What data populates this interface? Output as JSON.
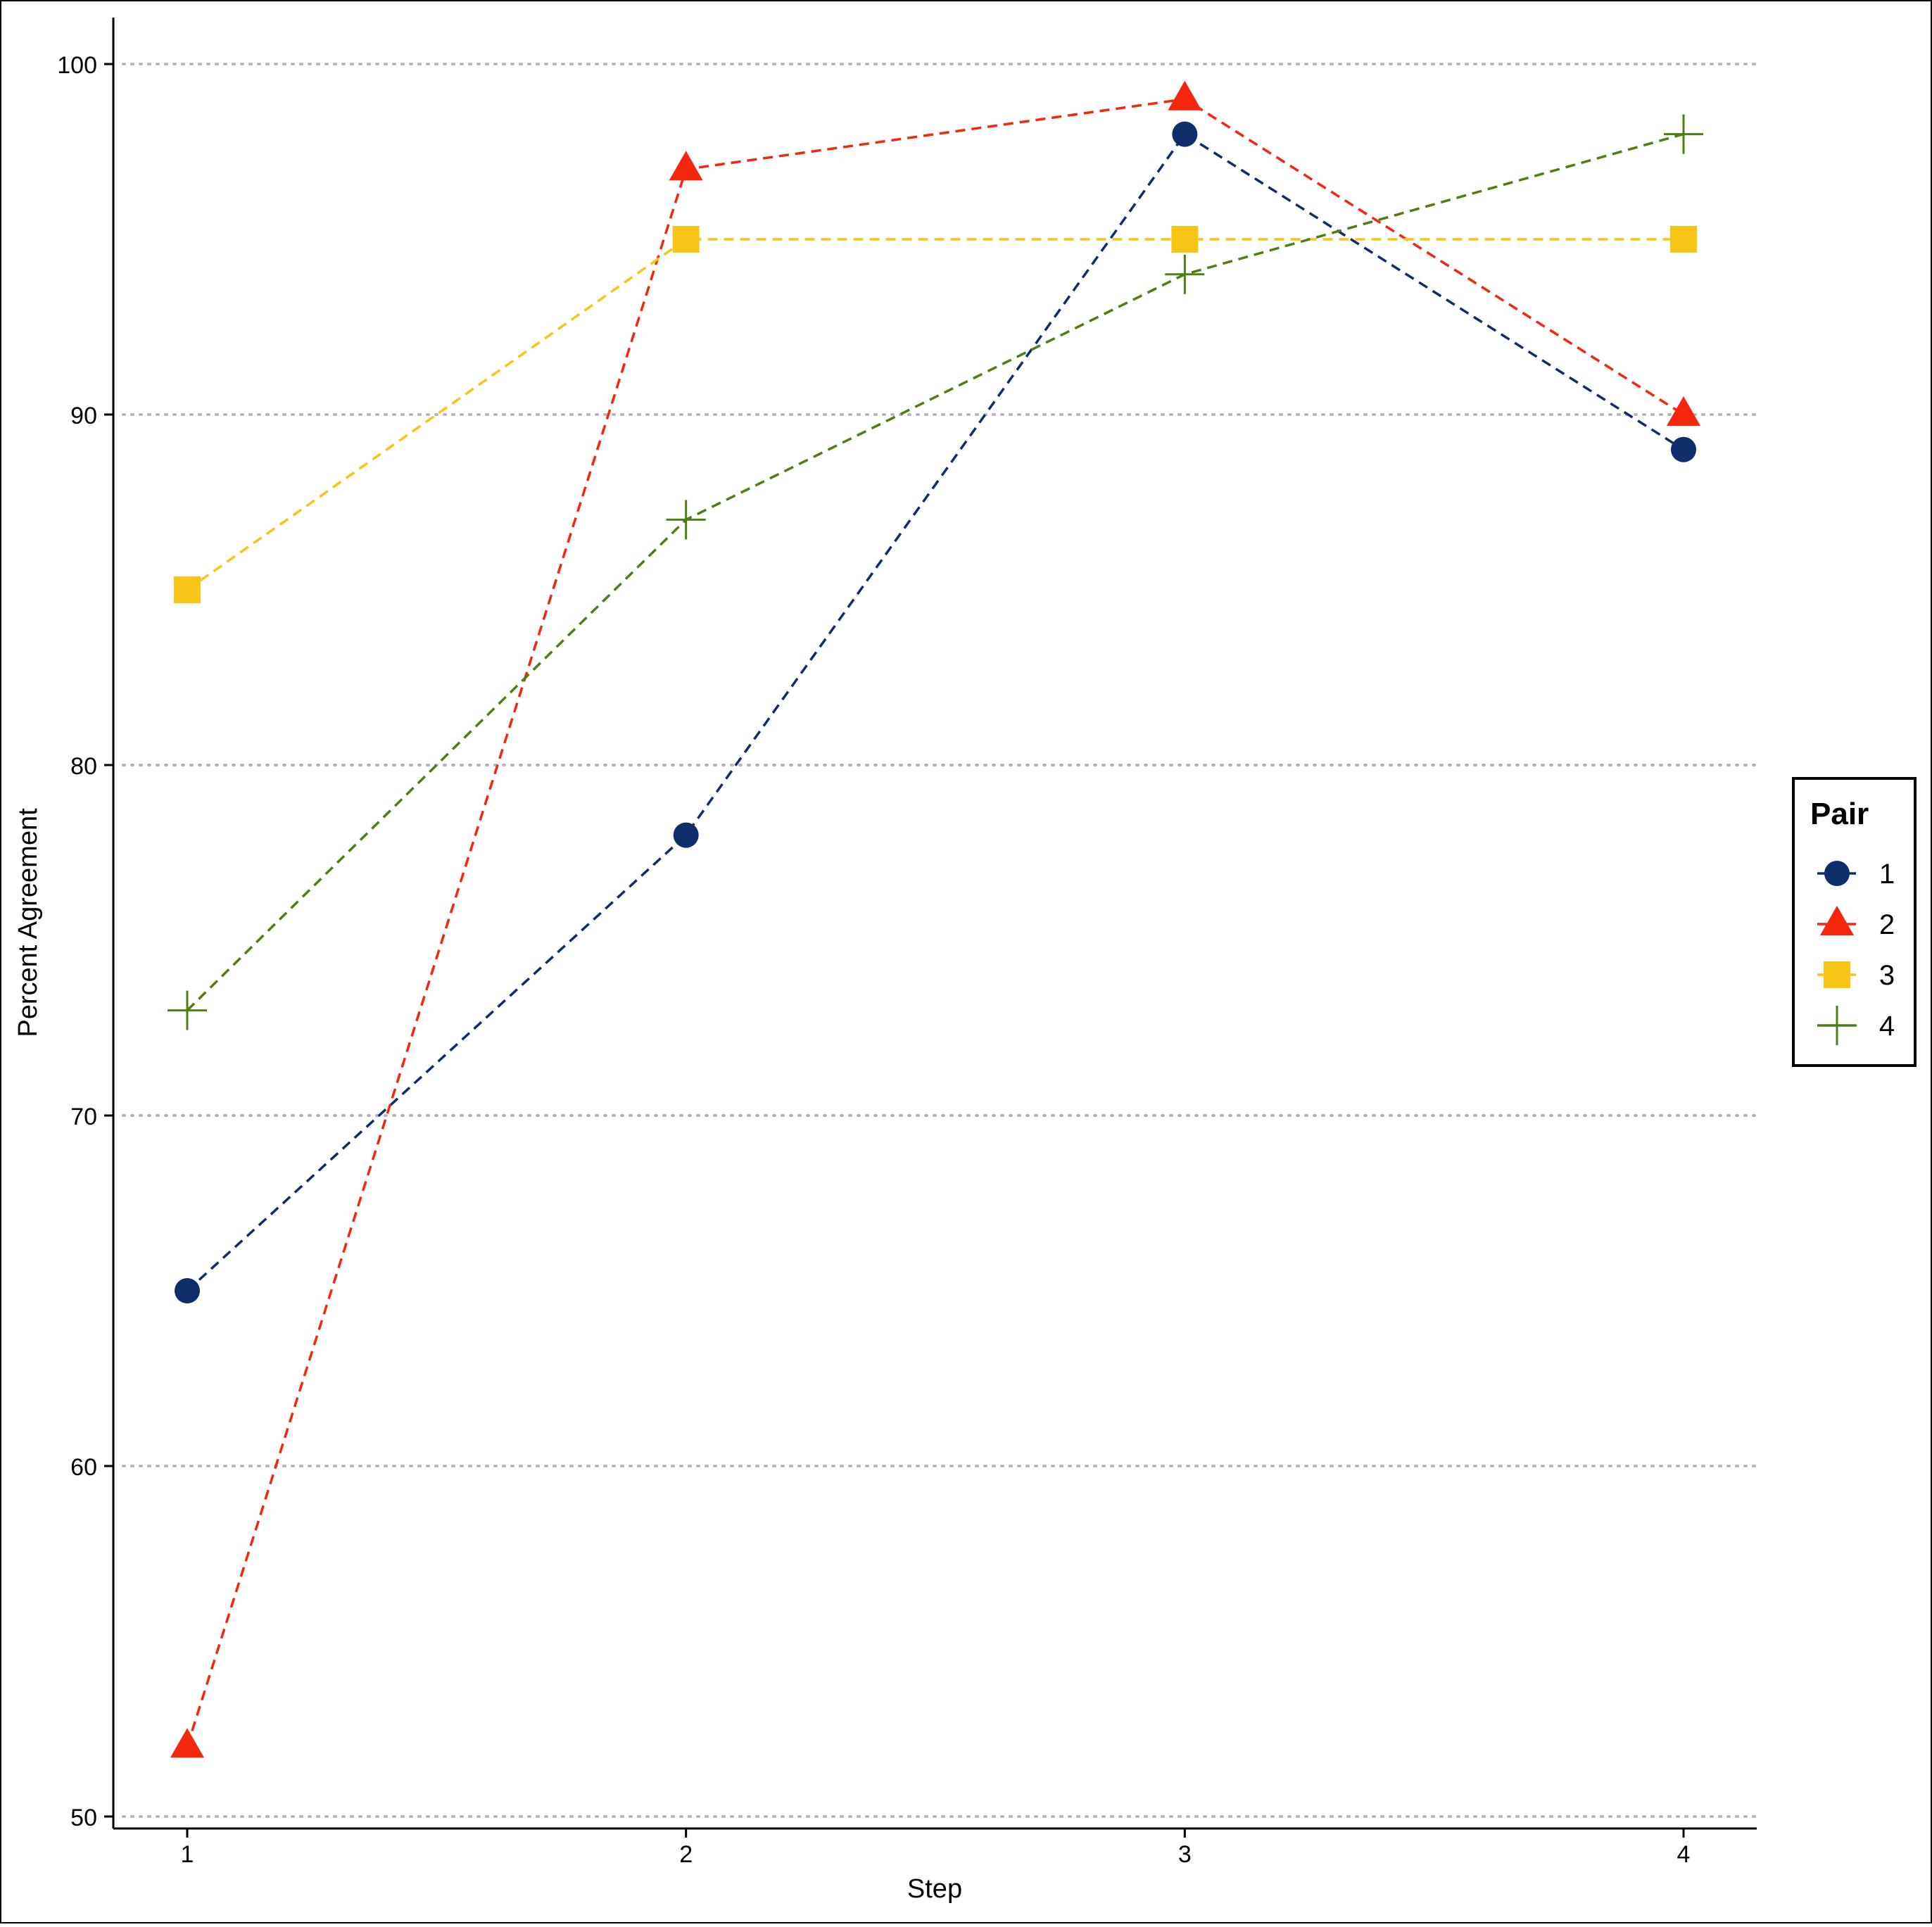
{
  "chart_data": {
    "type": "line",
    "xlabel": "Step",
    "ylabel": "Percent Agreement",
    "x": [
      1,
      2,
      3,
      4
    ],
    "x_ticks": [
      "1",
      "2",
      "3",
      "4"
    ],
    "y_ticks": [
      "50",
      "60",
      "70",
      "80",
      "90",
      "100"
    ],
    "ylim": [
      50,
      100
    ],
    "grid": "horizontal dotted",
    "line_style": "dashed",
    "legend": {
      "title": "Pair",
      "placement": "right"
    },
    "series": [
      {
        "name": "1",
        "marker": "circle",
        "color": "#0f2d6b",
        "values": [
          65,
          78,
          98,
          89
        ]
      },
      {
        "name": "2",
        "marker": "triangle",
        "color": "#f5260e",
        "values": [
          52,
          97,
          99,
          90
        ]
      },
      {
        "name": "3",
        "marker": "square",
        "color": "#f8c516",
        "values": [
          85,
          95,
          95,
          95
        ]
      },
      {
        "name": "4",
        "marker": "plus",
        "color": "#4f7d16",
        "values": [
          73,
          87,
          94,
          98
        ]
      }
    ]
  }
}
